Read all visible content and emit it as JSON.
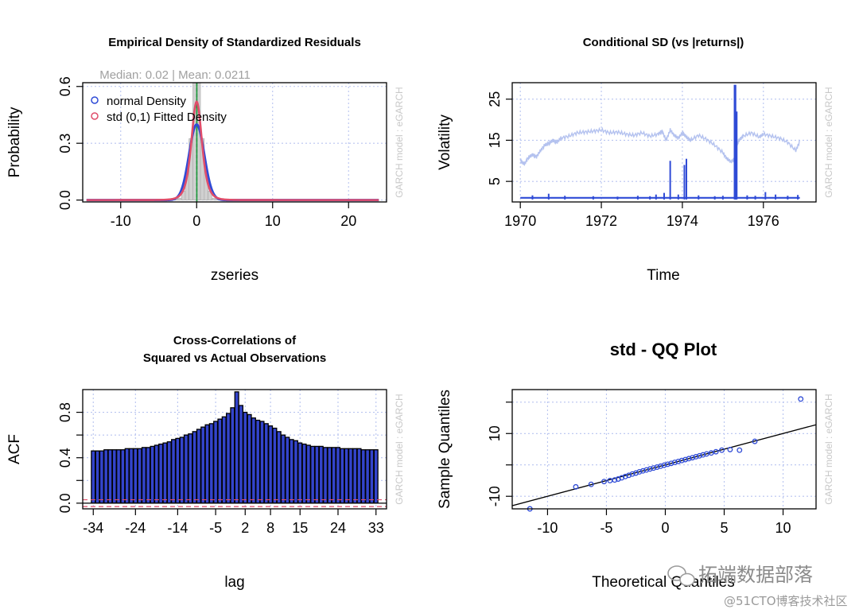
{
  "colors": {
    "blue": "#2f4bd6",
    "light_blue": "#b4c2ef",
    "red": "#e04d6a",
    "grid": "#b8c4f0",
    "side_text": "#c8c8c8",
    "black": "#000000",
    "green": "#1a9a3a",
    "acf_bar": "#3344cc"
  },
  "side_label": "GARCH model : eGARCH",
  "watermark": {
    "line1": "拓端数据部落",
    "line2": "@51CTO博客技术社区"
  },
  "chart_data": [
    {
      "id": "density",
      "type": "line",
      "title": "Empirical Density of Standardized Residuals",
      "subtitle": "Median:  0.02 | Mean:  0.0211",
      "xlabel": "zseries",
      "ylabel": "Probability",
      "xlim": [
        -15,
        25
      ],
      "ylim": [
        -0.01,
        0.62
      ],
      "xticks": [
        -10,
        0,
        10,
        20
      ],
      "xtick_labels": [
        "-10",
        "0",
        "10",
        "20"
      ],
      "yticks": [
        0.0,
        0.3,
        0.6
      ],
      "ytick_labels": [
        "0.0",
        "0.3",
        "0.6"
      ],
      "grid": true,
      "legend": {
        "position": "top-left",
        "entries": [
          {
            "label": "normal Density",
            "color": "#2f4bd6"
          },
          {
            "label": "std (0,1) Fitted Density",
            "color": "#e04d6a"
          }
        ]
      },
      "histogram_peak": 0.62,
      "series": [
        {
          "name": "normal Density",
          "color": "#2f4bd6",
          "dist": "normal",
          "mean": 0,
          "sd": 1,
          "xrange": [
            -14.5,
            24
          ]
        },
        {
          "name": "std (0,1) Fitted Density",
          "color": "#e04d6a",
          "dist": "std",
          "nu": 4.2,
          "xrange": [
            -14.5,
            24
          ]
        }
      ],
      "median": 0.02,
      "mean": 0.0211
    },
    {
      "id": "condsd",
      "type": "line",
      "title": "Conditional SD (vs |returns|)",
      "xlabel": "Time",
      "ylabel": "Volatility",
      "xlim": [
        1969.8,
        1977.3
      ],
      "ylim": [
        0,
        29
      ],
      "xticks": [
        1970,
        1972,
        1974,
        1976
      ],
      "xtick_labels": [
        "1970",
        "1972",
        "1974",
        "1976"
      ],
      "yticks": [
        5,
        15,
        25
      ],
      "ytick_labels": [
        "5",
        "15",
        "25"
      ],
      "grid": true,
      "series": [
        {
          "name": "Conditional SD",
          "color": "#b4c2ef",
          "x": [
            1970.0,
            1970.1,
            1970.2,
            1970.3,
            1970.4,
            1970.5,
            1970.6,
            1970.7,
            1970.8,
            1970.9,
            1971.0,
            1971.2,
            1971.4,
            1971.6,
            1971.8,
            1972.0,
            1972.2,
            1972.4,
            1972.6,
            1972.8,
            1973.0,
            1973.2,
            1973.4,
            1973.5,
            1973.6,
            1973.7,
            1973.8,
            1973.9,
            1974.0,
            1974.1,
            1974.2,
            1974.4,
            1974.6,
            1974.8,
            1975.0,
            1975.1,
            1975.2,
            1975.3,
            1975.35,
            1975.4,
            1975.5,
            1975.7,
            1975.9,
            1976.0,
            1976.2,
            1976.4,
            1976.6,
            1976.8,
            1976.9
          ],
          "y": [
            10.0,
            9.2,
            10.8,
            11.5,
            11.0,
            12.5,
            13.8,
            14.2,
            15.0,
            14.5,
            15.5,
            16.0,
            16.8,
            17.0,
            17.2,
            17.5,
            16.8,
            17.0,
            16.5,
            16.2,
            16.8,
            16.0,
            16.5,
            17.2,
            15.0,
            17.5,
            16.2,
            15.5,
            16.8,
            15.8,
            15.0,
            16.2,
            15.2,
            13.8,
            12.0,
            10.5,
            9.8,
            10.5,
            14.0,
            15.0,
            16.0,
            16.8,
            15.8,
            16.5,
            16.0,
            15.5,
            14.5,
            12.5,
            14.8
          ]
        },
        {
          "name": "|returns|",
          "color": "#2f4bd6",
          "spikes": [
            {
              "x": 1970.3,
              "y": 1.6
            },
            {
              "x": 1970.7,
              "y": 2.0
            },
            {
              "x": 1971.1,
              "y": 1.5
            },
            {
              "x": 1971.8,
              "y": 1.4
            },
            {
              "x": 1972.4,
              "y": 1.3
            },
            {
              "x": 1972.9,
              "y": 1.5
            },
            {
              "x": 1973.2,
              "y": 1.4
            },
            {
              "x": 1973.35,
              "y": 1.8
            },
            {
              "x": 1973.55,
              "y": 2.2
            },
            {
              "x": 1973.7,
              "y": 10.0
            },
            {
              "x": 1973.9,
              "y": 1.8
            },
            {
              "x": 1974.05,
              "y": 9.0
            },
            {
              "x": 1974.1,
              "y": 10.5
            },
            {
              "x": 1974.4,
              "y": 1.6
            },
            {
              "x": 1974.8,
              "y": 1.4
            },
            {
              "x": 1975.0,
              "y": 1.5
            },
            {
              "x": 1975.3,
              "y": 28.5
            },
            {
              "x": 1975.33,
              "y": 22.0
            },
            {
              "x": 1975.6,
              "y": 1.6
            },
            {
              "x": 1975.8,
              "y": 1.5
            },
            {
              "x": 1976.05,
              "y": 2.4
            },
            {
              "x": 1976.3,
              "y": 1.8
            },
            {
              "x": 1976.6,
              "y": 1.5
            },
            {
              "x": 1976.85,
              "y": 1.7
            }
          ],
          "baseline": 1.0
        }
      ]
    },
    {
      "id": "ccf",
      "type": "bar",
      "title": "Cross-Correlations of",
      "title2": "Squared vs Actual Observations",
      "xlabel": "lag",
      "ylabel": "ACF",
      "xlim": [
        -36.5,
        35.5
      ],
      "ylim": [
        -0.05,
        1.0
      ],
      "xticks": [
        -34,
        -24,
        -14,
        -5,
        2,
        8,
        15,
        24,
        33
      ],
      "xtick_labels": [
        "-34",
        "-24",
        "-14",
        "-5",
        "2",
        "8",
        "15",
        "24",
        "33"
      ],
      "yticks": [
        0.0,
        0.2,
        0.4,
        0.6,
        0.8
      ],
      "ytick_labels": [
        "0.0",
        "0.4",
        "0.8"
      ],
      "ytick_label_values": [
        0.0,
        0.4,
        0.8
      ],
      "grid": true,
      "conf_band": 0.03,
      "lags": [
        -34,
        -33,
        -32,
        -31,
        -30,
        -29,
        -28,
        -27,
        -26,
        -25,
        -24,
        -23,
        -22,
        -21,
        -20,
        -19,
        -18,
        -17,
        -16,
        -15,
        -14,
        -13,
        -12,
        -11,
        -10,
        -9,
        -8,
        -7,
        -6,
        -5,
        -4,
        -3,
        -2,
        -1,
        0,
        1,
        2,
        3,
        4,
        5,
        6,
        7,
        8,
        9,
        10,
        11,
        12,
        13,
        14,
        15,
        16,
        17,
        18,
        19,
        20,
        21,
        22,
        23,
        24,
        25,
        26,
        27,
        28,
        29,
        30,
        31,
        32,
        33
      ],
      "values": [
        0.46,
        0.46,
        0.46,
        0.47,
        0.47,
        0.47,
        0.47,
        0.47,
        0.48,
        0.48,
        0.48,
        0.48,
        0.49,
        0.49,
        0.5,
        0.51,
        0.52,
        0.53,
        0.54,
        0.56,
        0.57,
        0.58,
        0.6,
        0.61,
        0.63,
        0.65,
        0.67,
        0.69,
        0.7,
        0.72,
        0.74,
        0.76,
        0.79,
        0.84,
        0.98,
        0.86,
        0.8,
        0.78,
        0.75,
        0.73,
        0.72,
        0.7,
        0.68,
        0.66,
        0.63,
        0.6,
        0.58,
        0.56,
        0.55,
        0.53,
        0.52,
        0.51,
        0.5,
        0.5,
        0.5,
        0.49,
        0.49,
        0.49,
        0.49,
        0.48,
        0.48,
        0.48,
        0.48,
        0.48,
        0.47,
        0.47,
        0.47,
        0.47
      ]
    },
    {
      "id": "qq",
      "type": "scatter",
      "title": "std - QQ Plot",
      "xlabel": "Theoretical Quantiles",
      "ylabel": "Sample Quantiles",
      "xlim": [
        -13,
        12.8
      ],
      "ylim": [
        -14,
        24
      ],
      "xticks": [
        -10,
        -5,
        0,
        5,
        10
      ],
      "xtick_labels": [
        "-10",
        "-5",
        "0",
        "5",
        "10"
      ],
      "yticks": [
        -10,
        0,
        10,
        20
      ],
      "ytick_labels": [
        "-10",
        "10"
      ],
      "ytick_label_values": [
        -10,
        10
      ],
      "grid": true,
      "reference_line": {
        "slope": 1.0,
        "intercept": 0.0
      },
      "points": {
        "x": [
          -11.5,
          -7.6,
          -6.3,
          -5.2,
          -4.7,
          -4.3,
          -4.0,
          -3.7,
          -3.4,
          -3.1,
          -2.8,
          -2.5,
          -2.2,
          -1.9,
          -1.6,
          -1.3,
          -1.0,
          -0.7,
          -0.4,
          -0.1,
          0.2,
          0.5,
          0.8,
          1.1,
          1.4,
          1.7,
          2.0,
          2.3,
          2.6,
          2.9,
          3.2,
          3.5,
          3.9,
          4.3,
          4.8,
          5.5,
          6.3,
          7.6,
          11.5
        ],
        "y": [
          -14.0,
          -7.0,
          -6.2,
          -5.3,
          -5.0,
          -4.8,
          -4.5,
          -4.1,
          -3.7,
          -3.3,
          -2.9,
          -2.6,
          -2.2,
          -1.9,
          -1.6,
          -1.3,
          -1.0,
          -0.7,
          -0.4,
          -0.1,
          0.2,
          0.5,
          0.8,
          1.1,
          1.4,
          1.7,
          2.0,
          2.3,
          2.6,
          2.9,
          3.2,
          3.5,
          3.8,
          4.2,
          4.7,
          4.9,
          4.7,
          7.5,
          21.0
        ]
      }
    }
  ]
}
